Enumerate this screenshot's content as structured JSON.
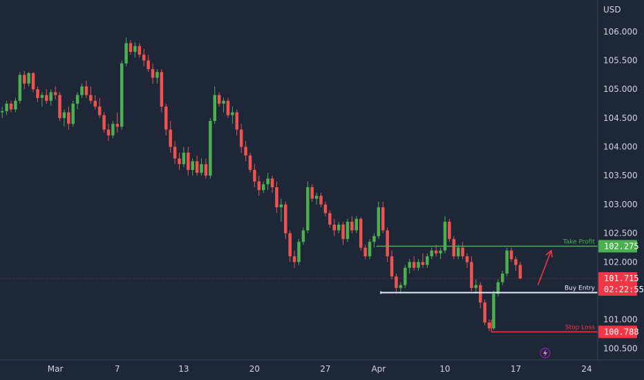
{
  "chart_data": {
    "type": "candlestick",
    "unit_label": "USD",
    "y_ticks": [
      106.0,
      105.5,
      105.0,
      104.5,
      104.0,
      103.5,
      103.0,
      102.5,
      102.0,
      101.5,
      101.0,
      100.5
    ],
    "y_tick_labels": [
      "106.000",
      "105.500",
      "105.000",
      "104.500",
      "104.000",
      "103.500",
      "103.000",
      "102.500",
      "102.000",
      "101.500",
      "101.000",
      "100.500"
    ],
    "ylim": [
      100.3,
      106.55
    ],
    "x_ticks": [
      {
        "label": "Mar",
        "bar": 12
      },
      {
        "label": "7",
        "bar": 26
      },
      {
        "label": "13",
        "bar": 41
      },
      {
        "label": "20",
        "bar": 57
      },
      {
        "label": "27",
        "bar": 73
      },
      {
        "label": "Apr",
        "bar": 85
      },
      {
        "label": "10",
        "bar": 100
      },
      {
        "label": "17",
        "bar": 116
      },
      {
        "label": "24",
        "bar": 132
      }
    ],
    "bars_total": 135,
    "up_color": "#26a69a",
    "green_color": "#4caf50",
    "down_color": "#ef5350",
    "candles": [
      [
        104.6,
        104.7,
        104.5,
        104.62
      ],
      [
        104.62,
        104.8,
        104.55,
        104.75
      ],
      [
        104.75,
        104.8,
        104.6,
        104.65
      ],
      [
        104.65,
        104.85,
        104.6,
        104.8
      ],
      [
        104.8,
        105.3,
        104.75,
        105.25
      ],
      [
        105.25,
        105.32,
        105.0,
        105.1
      ],
      [
        105.1,
        105.3,
        105.05,
        105.28
      ],
      [
        105.28,
        105.3,
        104.95,
        105.0
      ],
      [
        105.0,
        105.05,
        104.78,
        104.85
      ],
      [
        104.85,
        104.95,
        104.7,
        104.9
      ],
      [
        104.9,
        105.0,
        104.75,
        104.8
      ],
      [
        104.8,
        105.0,
        104.72,
        104.95
      ],
      [
        104.95,
        105.05,
        104.82,
        104.9
      ],
      [
        104.9,
        104.95,
        104.45,
        104.5
      ],
      [
        104.5,
        104.65,
        104.35,
        104.6
      ],
      [
        104.6,
        104.7,
        104.3,
        104.4
      ],
      [
        104.4,
        104.8,
        104.35,
        104.75
      ],
      [
        104.75,
        104.95,
        104.65,
        104.9
      ],
      [
        104.9,
        105.1,
        104.85,
        105.05
      ],
      [
        105.05,
        105.15,
        104.85,
        104.9
      ],
      [
        104.9,
        105.05,
        104.75,
        104.8
      ],
      [
        104.8,
        104.9,
        104.65,
        104.7
      ],
      [
        104.7,
        104.85,
        104.5,
        104.55
      ],
      [
        104.55,
        104.6,
        104.25,
        104.3
      ],
      [
        104.3,
        104.4,
        104.1,
        104.2
      ],
      [
        104.2,
        104.45,
        104.15,
        104.4
      ],
      [
        104.4,
        104.6,
        104.25,
        104.35
      ],
      [
        104.35,
        105.5,
        104.3,
        105.45
      ],
      [
        105.45,
        105.9,
        105.4,
        105.8
      ],
      [
        105.8,
        105.85,
        105.6,
        105.65
      ],
      [
        105.65,
        105.82,
        105.55,
        105.75
      ],
      [
        105.75,
        105.8,
        105.55,
        105.6
      ],
      [
        105.6,
        105.7,
        105.4,
        105.5
      ],
      [
        105.5,
        105.6,
        105.3,
        105.35
      ],
      [
        105.35,
        105.45,
        105.1,
        105.2
      ],
      [
        105.2,
        105.35,
        105.1,
        105.3
      ],
      [
        105.3,
        105.35,
        104.6,
        104.7
      ],
      [
        104.7,
        104.75,
        104.2,
        104.3
      ],
      [
        104.3,
        104.45,
        103.9,
        104.0
      ],
      [
        104.0,
        104.1,
        103.7,
        103.8
      ],
      [
        103.8,
        103.9,
        103.6,
        103.7
      ],
      [
        103.7,
        104.0,
        103.65,
        103.9
      ],
      [
        103.9,
        104.0,
        103.5,
        103.6
      ],
      [
        103.6,
        103.8,
        103.5,
        103.75
      ],
      [
        103.75,
        103.85,
        103.5,
        103.55
      ],
      [
        103.55,
        103.8,
        103.5,
        103.7
      ],
      [
        103.7,
        103.8,
        103.45,
        103.5
      ],
      [
        103.5,
        104.5,
        103.45,
        104.45
      ],
      [
        104.45,
        105.05,
        104.4,
        104.9
      ],
      [
        104.9,
        104.95,
        104.7,
        104.75
      ],
      [
        104.75,
        104.85,
        104.6,
        104.8
      ],
      [
        104.8,
        104.85,
        104.5,
        104.55
      ],
      [
        104.55,
        104.7,
        104.4,
        104.6
      ],
      [
        104.6,
        104.65,
        104.2,
        104.3
      ],
      [
        104.3,
        104.4,
        103.9,
        104.0
      ],
      [
        104.0,
        104.1,
        103.75,
        103.85
      ],
      [
        103.85,
        103.9,
        103.55,
        103.6
      ],
      [
        103.6,
        103.7,
        103.3,
        103.4
      ],
      [
        103.4,
        103.5,
        103.15,
        103.25
      ],
      [
        103.25,
        103.4,
        103.2,
        103.35
      ],
      [
        103.35,
        103.55,
        103.25,
        103.45
      ],
      [
        103.45,
        103.5,
        103.2,
        103.3
      ],
      [
        103.3,
        103.4,
        102.85,
        102.95
      ],
      [
        102.95,
        103.1,
        102.7,
        103.0
      ],
      [
        103.0,
        103.05,
        102.4,
        102.5
      ],
      [
        102.5,
        102.55,
        102.0,
        102.1
      ],
      [
        102.1,
        102.2,
        101.9,
        102.0
      ],
      [
        102.0,
        102.4,
        101.95,
        102.35
      ],
      [
        102.35,
        102.6,
        102.3,
        102.55
      ],
      [
        102.55,
        103.4,
        102.5,
        103.3
      ],
      [
        103.3,
        103.35,
        103.05,
        103.1
      ],
      [
        103.1,
        103.2,
        103.0,
        103.15
      ],
      [
        103.15,
        103.2,
        102.95,
        103.0
      ],
      [
        103.0,
        103.05,
        102.8,
        102.85
      ],
      [
        102.85,
        102.9,
        102.6,
        102.65
      ],
      [
        102.65,
        102.75,
        102.45,
        102.55
      ],
      [
        102.55,
        102.7,
        102.5,
        102.65
      ],
      [
        102.65,
        102.7,
        102.3,
        102.4
      ],
      [
        102.4,
        102.75,
        102.35,
        102.7
      ],
      [
        102.7,
        102.8,
        102.5,
        102.55
      ],
      [
        102.55,
        102.8,
        102.5,
        102.75
      ],
      [
        102.75,
        102.78,
        102.2,
        102.25
      ],
      [
        102.25,
        102.3,
        102.05,
        102.1
      ],
      [
        102.1,
        102.4,
        102.05,
        102.35
      ],
      [
        102.35,
        102.5,
        102.25,
        102.45
      ],
      [
        102.45,
        103.05,
        102.4,
        102.95
      ],
      [
        102.95,
        103.05,
        102.5,
        102.55
      ],
      [
        102.55,
        102.6,
        102.0,
        102.1
      ],
      [
        102.1,
        102.2,
        101.7,
        101.75
      ],
      [
        101.75,
        101.8,
        101.45,
        101.55
      ],
      [
        101.55,
        101.65,
        101.45,
        101.6
      ],
      [
        101.6,
        101.95,
        101.55,
        101.9
      ],
      [
        101.9,
        102.05,
        101.8,
        102.0
      ],
      [
        102.0,
        102.1,
        101.85,
        101.9
      ],
      [
        101.9,
        102.05,
        101.85,
        102.0
      ],
      [
        102.0,
        102.15,
        101.9,
        101.95
      ],
      [
        101.95,
        102.15,
        101.9,
        102.1
      ],
      [
        102.1,
        102.25,
        102.05,
        102.2
      ],
      [
        102.2,
        102.3,
        102.1,
        102.15
      ],
      [
        102.15,
        102.25,
        102.05,
        102.2
      ],
      [
        102.2,
        102.8,
        102.15,
        102.7
      ],
      [
        102.7,
        102.75,
        102.35,
        102.4
      ],
      [
        102.4,
        102.45,
        102.05,
        102.1
      ],
      [
        102.1,
        102.3,
        102.05,
        102.25
      ],
      [
        102.25,
        102.35,
        102.05,
        102.1
      ],
      [
        102.1,
        102.15,
        101.9,
        102.0
      ],
      [
        102.0,
        102.1,
        101.5,
        101.55
      ],
      [
        101.55,
        101.7,
        101.45,
        101.6
      ],
      [
        101.6,
        101.65,
        101.2,
        101.3
      ],
      [
        101.3,
        101.35,
        100.9,
        100.95
      ],
      [
        100.95,
        101.0,
        100.8,
        100.85
      ],
      [
        100.85,
        101.5,
        100.82,
        101.45
      ],
      [
        101.45,
        101.7,
        101.4,
        101.65
      ],
      [
        101.65,
        101.85,
        101.6,
        101.8
      ],
      [
        101.8,
        102.25,
        101.75,
        102.2
      ],
      [
        102.2,
        102.25,
        102.0,
        102.05
      ],
      [
        102.05,
        102.1,
        101.85,
        101.95
      ],
      [
        101.95,
        102.0,
        101.7,
        101.715
      ]
    ],
    "levels": [
      {
        "name": "Take Profit",
        "value": 102.275,
        "label": "102.275",
        "color": "#4caf50",
        "start_bar": 85
      },
      {
        "name": "Buy Entry",
        "value": 101.47,
        "color": "#e6ecff",
        "start_bar": 86
      },
      {
        "name": "Stop Loss",
        "value": 100.788,
        "label": "100.788",
        "color": "#f23645",
        "start_bar": 111
      }
    ],
    "current_price": {
      "label": "101.715",
      "countdown": "02:22:55",
      "value": 101.715,
      "color": "#f23645"
    },
    "annotations": [
      {
        "text": "Take Profit",
        "color": "#4caf50"
      },
      {
        "text": "Buy Entry",
        "color": "#e6ecff"
      },
      {
        "text": "Stop Loss",
        "color": "#f23645"
      }
    ],
    "arrow": {
      "from_bar": 121,
      "from_value": 101.6,
      "to_bar": 124,
      "to_value": 102.2,
      "color": "#f23645"
    },
    "grid": false
  }
}
